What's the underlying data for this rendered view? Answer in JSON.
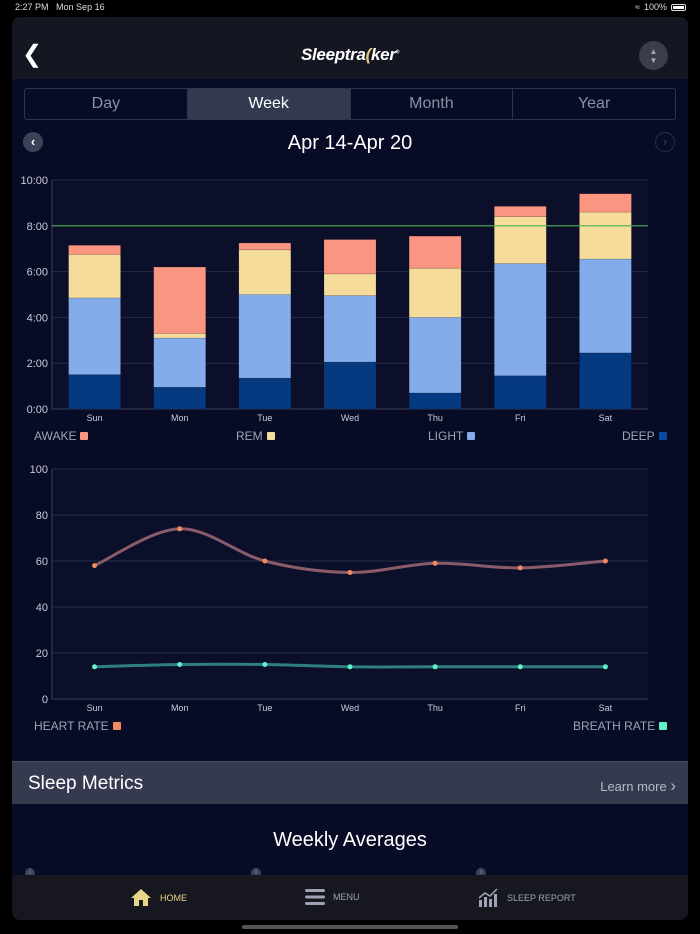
{
  "status": {
    "time": "2:27 PM",
    "date": "Mon Sep 16",
    "battery": "100%"
  },
  "header": {
    "logo": "Sleeptracker",
    "logo_parts": [
      "Sleeptra",
      "(",
      "ker"
    ]
  },
  "tabs": [
    {
      "label": "Day"
    },
    {
      "label": "Week",
      "active": true
    },
    {
      "label": "Month"
    },
    {
      "label": "Year"
    }
  ],
  "date_range": "Apr 14-Apr 20",
  "chart_data": [
    {
      "type": "bar",
      "stacked": true,
      "categories": [
        "Sun",
        "Mon",
        "Tue",
        "Wed",
        "Thu",
        "Fri",
        "Sat"
      ],
      "ytick_labels": [
        "0:00",
        "2:00",
        "4:00",
        "6:00",
        "8:00",
        "10:00"
      ],
      "ylim": [
        0,
        10
      ],
      "yunit": "hours",
      "goal_line": 8,
      "goal_color": "#4caf50",
      "grid": true,
      "series": [
        {
          "name": "DEEP",
          "color": "#063a80",
          "values": [
            1.5,
            0.95,
            1.35,
            2.05,
            0.7,
            1.45,
            2.45
          ]
        },
        {
          "name": "LIGHT",
          "color": "#84acea",
          "values": [
            3.35,
            2.15,
            3.65,
            2.9,
            3.3,
            4.9,
            4.1
          ]
        },
        {
          "name": "REM",
          "color": "#f5dc9a",
          "values": [
            1.9,
            0.2,
            1.95,
            0.95,
            2.15,
            2.05,
            2.05
          ]
        },
        {
          "name": "AWAKE",
          "color": "#f99580",
          "values": [
            0.4,
            2.9,
            0.3,
            1.5,
            1.4,
            0.45,
            0.8
          ]
        }
      ],
      "legend_order": [
        "AWAKE",
        "REM",
        "LIGHT",
        "DEEP"
      ],
      "legend_placement": "bottom"
    },
    {
      "type": "line",
      "smooth": true,
      "categories": [
        "Sun",
        "Mon",
        "Tue",
        "Wed",
        "Thu",
        "Fri",
        "Sat"
      ],
      "ytick_labels": [
        "0",
        "20",
        "40",
        "60",
        "80",
        "100"
      ],
      "ylim": [
        0,
        100
      ],
      "grid": true,
      "series": [
        {
          "name": "HEART RATE",
          "color": "#f4895f",
          "line_color": "#8a5c6a",
          "values": [
            58,
            74,
            60,
            55,
            59,
            57,
            60
          ]
        },
        {
          "name": "BREATH RATE",
          "color": "#5ff0c8",
          "line_color": "#2f7f80",
          "values": [
            14,
            15,
            15,
            14,
            14,
            14,
            14
          ]
        }
      ],
      "legend_placement": "bottom"
    }
  ],
  "metrics": {
    "title": "Sleep Metrics",
    "learn_more": "Learn more"
  },
  "weekly_title": "Weekly Averages",
  "tabbar": [
    {
      "label": "HOME",
      "icon": "home-icon",
      "active": true
    },
    {
      "label": "MENU",
      "icon": "menu-icon"
    },
    {
      "label": "SLEEP REPORT",
      "icon": "chart-icon"
    }
  ]
}
